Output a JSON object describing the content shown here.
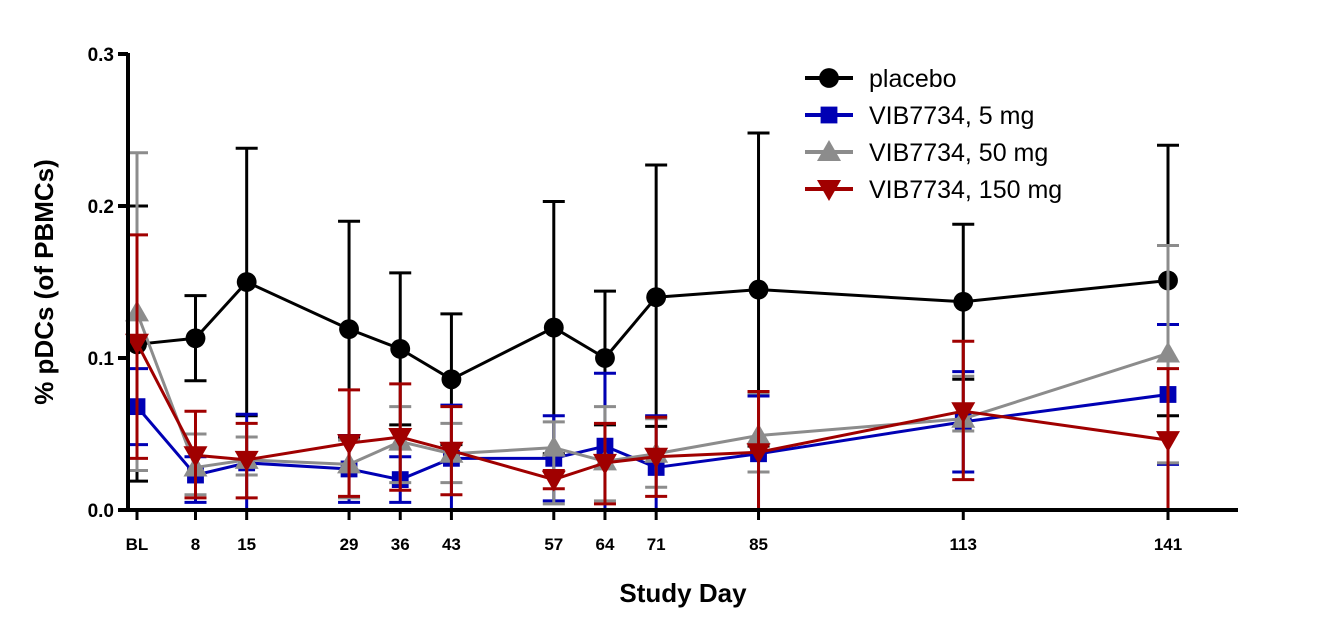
{
  "chart_data": {
    "type": "line",
    "title": "",
    "xlabel": "Study Day",
    "ylabel": "% pDCs (of PBMCs)",
    "ylim": [
      0,
      0.3
    ],
    "yticks": [
      0.0,
      0.1,
      0.2,
      0.3
    ],
    "ytick_labels": [
      "0.0",
      "0.1",
      "0.2",
      "0.3"
    ],
    "x": [
      0,
      8,
      15,
      29,
      36,
      43,
      57,
      64,
      71,
      85,
      113,
      141
    ],
    "xtick_labels": [
      "BL",
      "8",
      "15",
      "29",
      "36",
      "43",
      "57",
      "64",
      "71",
      "85",
      "113",
      "141"
    ],
    "xlim": [
      -1,
      154
    ],
    "grid": false,
    "legend_position": "top-right",
    "series": [
      {
        "name": "placebo",
        "color": "#000000",
        "marker": "circle",
        "values": [
          0.109,
          0.113,
          0.15,
          0.119,
          0.106,
          0.086,
          0.12,
          0.1,
          0.14,
          0.145,
          0.137,
          0.151
        ],
        "err_upper": [
          0.2,
          0.141,
          0.238,
          0.19,
          0.156,
          0.129,
          0.203,
          0.144,
          0.227,
          0.248,
          0.188,
          0.24
        ],
        "err_lower": [
          0.019,
          0.085,
          0.062,
          0.048,
          0.056,
          0.043,
          0.037,
          0.056,
          0.055,
          0.042,
          0.086,
          0.062
        ]
      },
      {
        "name": "VIB7734, 5 mg",
        "color": "#0000b4",
        "marker": "square",
        "values": [
          0.068,
          0.023,
          0.031,
          0.027,
          0.02,
          0.034,
          0.034,
          0.042,
          0.028,
          0.037,
          0.058,
          0.076
        ],
        "err_upper": [
          0.093,
          0.035,
          0.063,
          0.049,
          0.035,
          0.069,
          0.062,
          0.09,
          0.062,
          0.075,
          0.091,
          0.122
        ],
        "err_lower": [
          0.043,
          0.005,
          0.0,
          0.005,
          0.005,
          0.0,
          0.006,
          0.0,
          0.0,
          0.0,
          0.025,
          0.03
        ]
      },
      {
        "name": "VIB7734, 50 mg",
        "color": "#8c8c8c",
        "marker": "triangle-up",
        "values": [
          0.13,
          0.028,
          0.033,
          0.03,
          0.045,
          0.037,
          0.041,
          0.032,
          0.037,
          0.049,
          0.06,
          0.103
        ],
        "err_upper": [
          0.235,
          0.05,
          0.048,
          0.046,
          0.068,
          0.057,
          0.058,
          0.068,
          0.06,
          0.077,
          0.088,
          0.174
        ],
        "err_lower": [
          0.026,
          0.01,
          0.023,
          0.008,
          0.018,
          0.018,
          0.004,
          0.006,
          0.015,
          0.025,
          0.052,
          0.031
        ]
      },
      {
        "name": "VIB7734, 150 mg",
        "color": "#a00000",
        "marker": "triangle-down",
        "values": [
          0.11,
          0.036,
          0.033,
          0.044,
          0.048,
          0.039,
          0.02,
          0.031,
          0.035,
          0.038,
          0.065,
          0.046
        ],
        "err_upper": [
          0.181,
          0.065,
          0.057,
          0.079,
          0.083,
          0.068,
          0.026,
          0.057,
          0.061,
          0.078,
          0.111,
          0.093
        ],
        "err_lower": [
          0.034,
          0.008,
          0.008,
          0.009,
          0.013,
          0.01,
          0.014,
          0.004,
          0.009,
          0.0,
          0.02,
          0.0
        ]
      }
    ]
  }
}
